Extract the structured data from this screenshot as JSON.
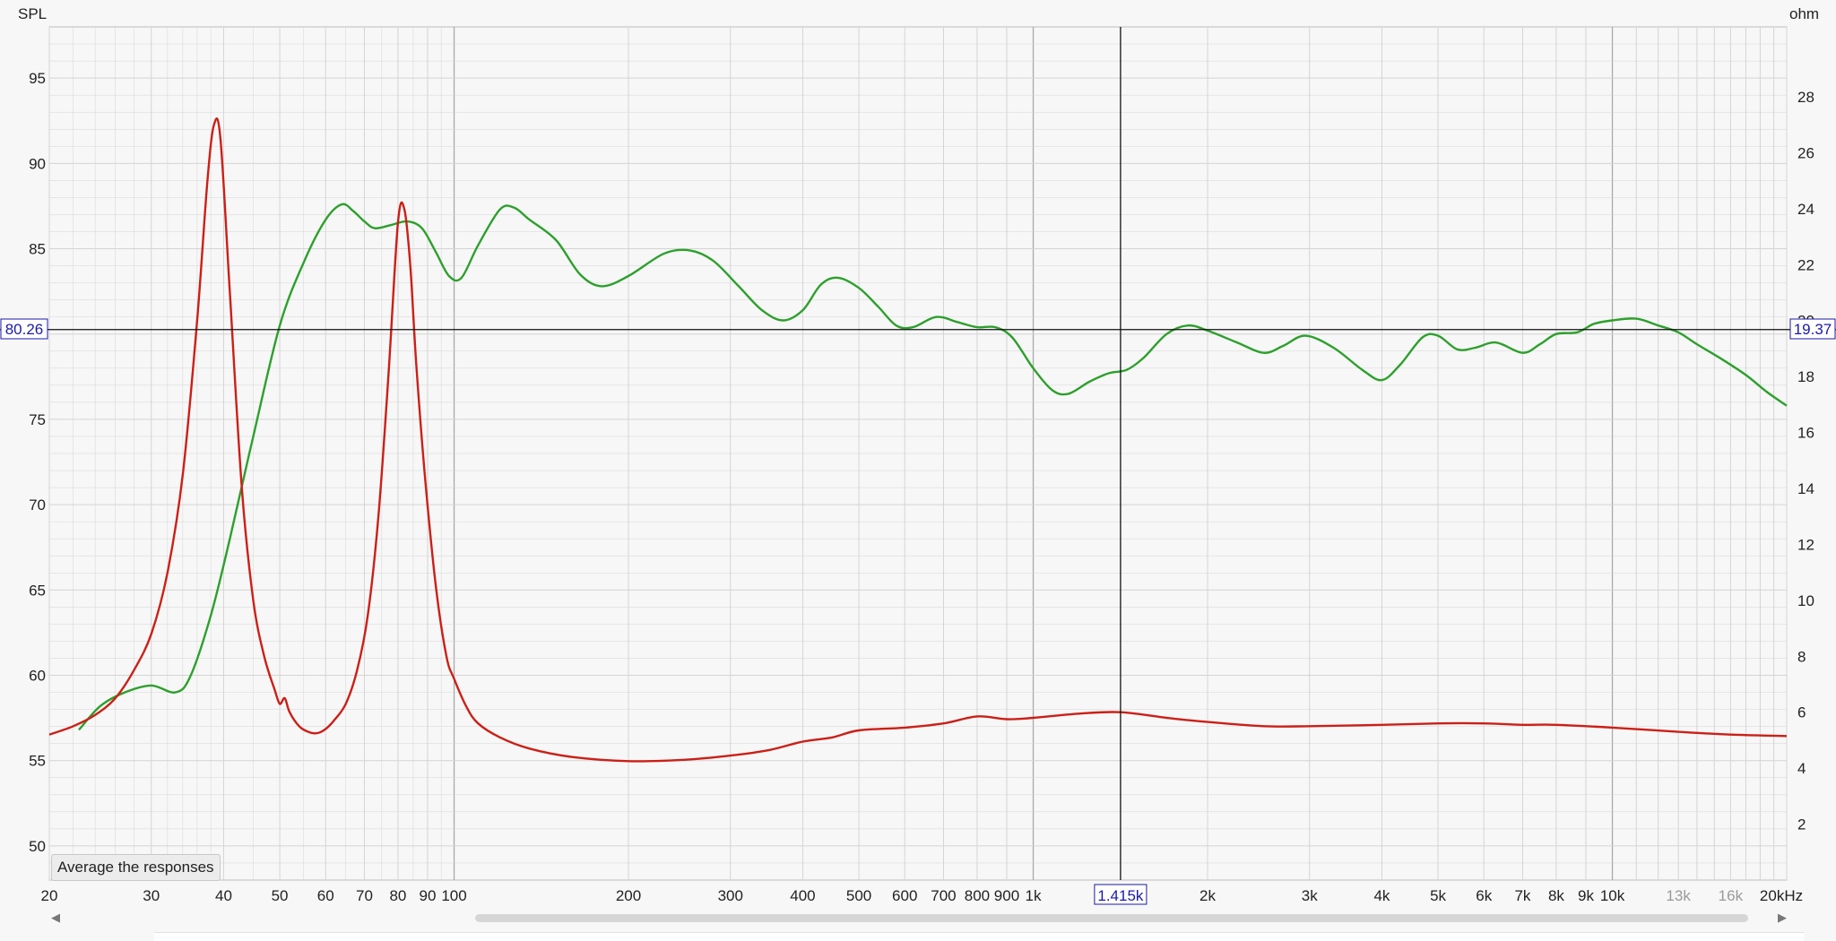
{
  "axes": {
    "left_title": "SPL",
    "right_title": "ohm",
    "x_unit": "kHz"
  },
  "cursor": {
    "spl_label": "80.26",
    "ohm_label": "19.37",
    "freq_label": "1.415k",
    "freq_value": 1415,
    "spl_value": 80.26
  },
  "controls": {
    "average_button": "Average the responses"
  },
  "colors": {
    "spl_series": "#2ca02c",
    "impedance_series": "#cc1f17",
    "cursor": "#1a1aa8",
    "grid": "#d4d4d4",
    "background": "#f7f7f7"
  },
  "chart_data": {
    "type": "line",
    "title": "",
    "xlabel": "",
    "ylabel": "SPL",
    "y2label": "ohm",
    "x_scale": "log",
    "xlim": [
      20,
      20000
    ],
    "ylim": [
      48,
      98
    ],
    "y2lim": [
      0,
      30.5
    ],
    "grid": true,
    "x_ticks": [
      {
        "v": 20,
        "t": "20"
      },
      {
        "v": 30,
        "t": "30"
      },
      {
        "v": 40,
        "t": "40"
      },
      {
        "v": 50,
        "t": "50"
      },
      {
        "v": 60,
        "t": "60"
      },
      {
        "v": 70,
        "t": "70"
      },
      {
        "v": 80,
        "t": "80"
      },
      {
        "v": 90,
        "t": "90"
      },
      {
        "v": 100,
        "t": "100"
      },
      {
        "v": 200,
        "t": "200"
      },
      {
        "v": 300,
        "t": "300"
      },
      {
        "v": 400,
        "t": "400"
      },
      {
        "v": 500,
        "t": "500"
      },
      {
        "v": 600,
        "t": "600"
      },
      {
        "v": 700,
        "t": "700"
      },
      {
        "v": 800,
        "t": "800"
      },
      {
        "v": 900,
        "t": "900"
      },
      {
        "v": 1000,
        "t": "1k"
      },
      {
        "v": 2000,
        "t": "2k"
      },
      {
        "v": 3000,
        "t": "3k"
      },
      {
        "v": 4000,
        "t": "4k"
      },
      {
        "v": 5000,
        "t": "5k"
      },
      {
        "v": 6000,
        "t": "6k"
      },
      {
        "v": 7000,
        "t": "7k"
      },
      {
        "v": 8000,
        "t": "8k"
      },
      {
        "v": 9000,
        "t": "9k"
      },
      {
        "v": 10000,
        "t": "10k"
      },
      {
        "v": 13000,
        "t": "13k",
        "dim": true
      },
      {
        "v": 16000,
        "t": "16k",
        "dim": true
      },
      {
        "v": 20000,
        "t": "20kHz"
      }
    ],
    "y_ticks": [
      50,
      55,
      60,
      65,
      70,
      75,
      80,
      85,
      90,
      95
    ],
    "y2_ticks": [
      2,
      4,
      6,
      8,
      10,
      12,
      14,
      16,
      18,
      20,
      22,
      24,
      26,
      28
    ],
    "series": [
      {
        "axis": "left",
        "points": [
          [
            22.5,
            56.8
          ],
          [
            24.5,
            58.2
          ],
          [
            27,
            59.0
          ],
          [
            30,
            59.4
          ],
          [
            33,
            59.0
          ],
          [
            35,
            59.9
          ],
          [
            38,
            63.5
          ],
          [
            41,
            68.0
          ],
          [
            45,
            74.0
          ],
          [
            50,
            80.5
          ],
          [
            55,
            84.2
          ],
          [
            60,
            86.7
          ],
          [
            64,
            87.6
          ],
          [
            67,
            87.2
          ],
          [
            70,
            86.6
          ],
          [
            73,
            86.2
          ],
          [
            78,
            86.4
          ],
          [
            83,
            86.6
          ],
          [
            88,
            86.2
          ],
          [
            93,
            84.8
          ],
          [
            98,
            83.4
          ],
          [
            103,
            83.3
          ],
          [
            110,
            85.2
          ],
          [
            120,
            87.3
          ],
          [
            127,
            87.4
          ],
          [
            135,
            86.7
          ],
          [
            150,
            85.5
          ],
          [
            165,
            83.5
          ],
          [
            180,
            82.8
          ],
          [
            200,
            83.4
          ],
          [
            230,
            84.7
          ],
          [
            255,
            84.9
          ],
          [
            280,
            84.3
          ],
          [
            310,
            82.8
          ],
          [
            340,
            81.4
          ],
          [
            370,
            80.8
          ],
          [
            400,
            81.4
          ],
          [
            430,
            82.9
          ],
          [
            460,
            83.3
          ],
          [
            500,
            82.7
          ],
          [
            540,
            81.6
          ],
          [
            580,
            80.5
          ],
          [
            620,
            80.4
          ],
          [
            680,
            81.0
          ],
          [
            740,
            80.7
          ],
          [
            800,
            80.4
          ],
          [
            860,
            80.4
          ],
          [
            920,
            79.8
          ],
          [
            1000,
            78.0
          ],
          [
            1080,
            76.7
          ],
          [
            1150,
            76.5
          ],
          [
            1250,
            77.2
          ],
          [
            1350,
            77.7
          ],
          [
            1450,
            77.9
          ],
          [
            1550,
            78.6
          ],
          [
            1700,
            80.0
          ],
          [
            1850,
            80.5
          ],
          [
            2000,
            80.2
          ],
          [
            2250,
            79.5
          ],
          [
            2500,
            78.9
          ],
          [
            2700,
            79.3
          ],
          [
            2950,
            79.9
          ],
          [
            3300,
            79.2
          ],
          [
            3700,
            77.9
          ],
          [
            4000,
            77.3
          ],
          [
            4300,
            78.2
          ],
          [
            4700,
            79.8
          ],
          [
            5000,
            79.9
          ],
          [
            5400,
            79.1
          ],
          [
            5800,
            79.2
          ],
          [
            6300,
            79.5
          ],
          [
            7000,
            78.9
          ],
          [
            7500,
            79.4
          ],
          [
            8000,
            80.0
          ],
          [
            8700,
            80.1
          ],
          [
            9300,
            80.6
          ],
          [
            10000,
            80.8
          ],
          [
            11000,
            80.9
          ],
          [
            12000,
            80.5
          ],
          [
            13000,
            80.1
          ],
          [
            14000,
            79.4
          ],
          [
            15500,
            78.5
          ],
          [
            17000,
            77.6
          ],
          [
            18500,
            76.6
          ],
          [
            20000,
            75.8
          ]
        ]
      },
      {
        "axis": "right",
        "points": [
          [
            20,
            5.2
          ],
          [
            22,
            5.5
          ],
          [
            24,
            5.9
          ],
          [
            26,
            6.5
          ],
          [
            28,
            7.5
          ],
          [
            30,
            8.8
          ],
          [
            32,
            11.0
          ],
          [
            34,
            14.5
          ],
          [
            36,
            20.0
          ],
          [
            37.5,
            25.0
          ],
          [
            38.5,
            27.0
          ],
          [
            39.5,
            26.5
          ],
          [
            41,
            21.0
          ],
          [
            43,
            14.0
          ],
          [
            45,
            10.0
          ],
          [
            47,
            8.0
          ],
          [
            49,
            6.8
          ],
          [
            50,
            6.3
          ],
          [
            51,
            6.5
          ],
          [
            52,
            6.0
          ],
          [
            54,
            5.5
          ],
          [
            56,
            5.3
          ],
          [
            58,
            5.25
          ],
          [
            60,
            5.4
          ],
          [
            62,
            5.7
          ],
          [
            65,
            6.3
          ],
          [
            68,
            7.5
          ],
          [
            71,
            9.5
          ],
          [
            74,
            13.0
          ],
          [
            77,
            18.0
          ],
          [
            80,
            23.5
          ],
          [
            82,
            24.0
          ],
          [
            84,
            22.0
          ],
          [
            86,
            18.5
          ],
          [
            89,
            14.5
          ],
          [
            93,
            10.5
          ],
          [
            97,
            8.0
          ],
          [
            100,
            7.2
          ],
          [
            105,
            6.2
          ],
          [
            110,
            5.6
          ],
          [
            120,
            5.1
          ],
          [
            135,
            4.7
          ],
          [
            160,
            4.4
          ],
          [
            200,
            4.25
          ],
          [
            250,
            4.3
          ],
          [
            300,
            4.45
          ],
          [
            350,
            4.65
          ],
          [
            400,
            4.95
          ],
          [
            450,
            5.1
          ],
          [
            500,
            5.35
          ],
          [
            600,
            5.45
          ],
          [
            700,
            5.6
          ],
          [
            800,
            5.85
          ],
          [
            900,
            5.75
          ],
          [
            1000,
            5.8
          ],
          [
            1200,
            5.95
          ],
          [
            1415,
            6.0
          ],
          [
            1700,
            5.8
          ],
          [
            2000,
            5.65
          ],
          [
            2500,
            5.5
          ],
          [
            3000,
            5.5
          ],
          [
            4000,
            5.55
          ],
          [
            5000,
            5.6
          ],
          [
            6000,
            5.6
          ],
          [
            7000,
            5.55
          ],
          [
            8000,
            5.55
          ],
          [
            10000,
            5.45
          ],
          [
            13000,
            5.3
          ],
          [
            16000,
            5.2
          ],
          [
            20000,
            5.15
          ]
        ]
      }
    ]
  }
}
